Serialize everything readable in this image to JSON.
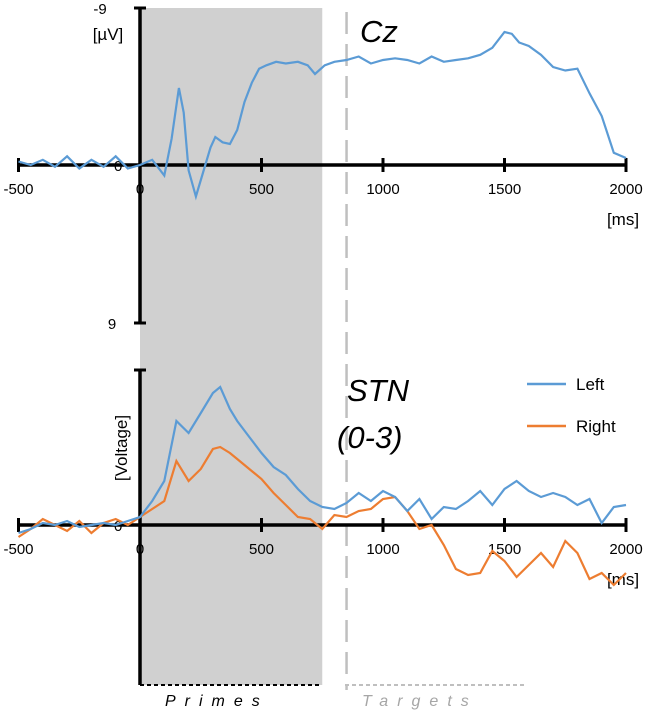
{
  "chart_data": [
    {
      "type": "line",
      "title": "Cz",
      "ylabel": "[µV]",
      "xlabel": "[ms]",
      "y_tick_top": "-9",
      "y_tick_mid": "0",
      "y_tick_bottom": "9",
      "x_ticks": [
        "-500",
        "0",
        "500",
        "1000",
        "1500",
        "2000"
      ],
      "xlim": [
        -500,
        2000
      ],
      "ylim": [
        -9,
        9
      ],
      "y_inverted": true,
      "series": [
        {
          "color": "#5b9bd5",
          "x": [
            -500,
            -450,
            -400,
            -350,
            -300,
            -250,
            -200,
            -150,
            -100,
            -50,
            0,
            50,
            100,
            130,
            160,
            180,
            200,
            230,
            260,
            290,
            310,
            340,
            370,
            400,
            430,
            460,
            490,
            520,
            560,
            600,
            650,
            690,
            720,
            760,
            800,
            850,
            900,
            950,
            1000,
            1050,
            1100,
            1150,
            1200,
            1250,
            1300,
            1350,
            1400,
            1450,
            1500,
            1530,
            1560,
            1600,
            1650,
            1700,
            1750,
            1800,
            1850,
            1900,
            1950,
            2000
          ],
          "y": [
            -0.2,
            0,
            -0.3,
            0.1,
            -0.5,
            0.2,
            -0.3,
            0.1,
            -0.5,
            0.2,
            0,
            -0.3,
            0.6,
            -1.5,
            -4.4,
            -3.0,
            0.3,
            1.8,
            0.4,
            -1.0,
            -1.6,
            -1.3,
            -1.2,
            -2.0,
            -3.6,
            -4.7,
            -5.5,
            -5.7,
            -5.9,
            -5.8,
            -5.9,
            -5.7,
            -5.2,
            -5.7,
            -5.9,
            -6.0,
            -6.2,
            -5.8,
            -6.0,
            -6.1,
            -6.0,
            -5.8,
            -6.2,
            -5.9,
            -6.0,
            -6.1,
            -6.3,
            -6.7,
            -7.6,
            -7.5,
            -7.0,
            -6.8,
            -6.3,
            -5.6,
            -5.4,
            -5.5,
            -4.1,
            -2.8,
            -0.7,
            -0.4
          ]
        }
      ]
    },
    {
      "type": "line",
      "title": "STN (0-3)",
      "title_line1": "STN",
      "title_line2": "(0-3)",
      "ylabel": "[Voltage]",
      "xlabel": "[ms]",
      "y_tick_mid": "0",
      "x_ticks": [
        "-500",
        "0",
        "500",
        "1000",
        "1500",
        "2000"
      ],
      "xlim": [
        -500,
        2000
      ],
      "ylim": [
        -1,
        1
      ],
      "series": [
        {
          "name": "Left",
          "color": "#5b9bd5",
          "x": [
            -500,
            -450,
            -400,
            -350,
            -300,
            -250,
            -200,
            -150,
            -100,
            -50,
            0,
            50,
            100,
            150,
            200,
            250,
            300,
            330,
            370,
            400,
            450,
            500,
            550,
            600,
            650,
            700,
            750,
            800,
            850,
            900,
            950,
            1000,
            1050,
            1100,
            1150,
            1200,
            1250,
            1300,
            1350,
            1400,
            1450,
            1500,
            1550,
            1600,
            1650,
            1700,
            1750,
            1800,
            1850,
            1900,
            1950,
            2000
          ],
          "y": [
            -0.04,
            -0.02,
            0.01,
            0,
            0.02,
            -0.01,
            0,
            0.01,
            0,
            0.02,
            0.04,
            0.12,
            0.22,
            0.52,
            0.46,
            0.56,
            0.66,
            0.69,
            0.58,
            0.52,
            0.44,
            0.36,
            0.29,
            0.25,
            0.18,
            0.12,
            0.09,
            0.08,
            0.11,
            0.16,
            0.12,
            0.17,
            0.14,
            0.07,
            0.13,
            0.03,
            0.09,
            0.08,
            0.12,
            0.17,
            0.1,
            0.18,
            0.22,
            0.17,
            0.14,
            0.16,
            0.14,
            0.1,
            0.13,
            0.01,
            0.09,
            0.1
          ]
        },
        {
          "name": "Right",
          "color": "#ed7d31",
          "x": [
            -500,
            -450,
            -400,
            -350,
            -300,
            -250,
            -200,
            -150,
            -100,
            -50,
            0,
            50,
            100,
            150,
            200,
            250,
            300,
            330,
            370,
            400,
            450,
            500,
            550,
            600,
            650,
            700,
            750,
            800,
            850,
            900,
            950,
            1000,
            1050,
            1100,
            1150,
            1200,
            1250,
            1300,
            1350,
            1400,
            1450,
            1500,
            1550,
            1600,
            1650,
            1700,
            1750,
            1800,
            1850,
            1900,
            1950,
            2000
          ],
          "y": [
            -0.06,
            -0.02,
            0.03,
            0,
            -0.03,
            0.02,
            -0.04,
            0.01,
            0.03,
            0,
            0.04,
            0.08,
            0.12,
            0.32,
            0.22,
            0.28,
            0.38,
            0.39,
            0.36,
            0.33,
            0.28,
            0.23,
            0.16,
            0.1,
            0.04,
            0.03,
            -0.02,
            0.05,
            0.04,
            0.07,
            0.08,
            0.13,
            0.14,
            0.07,
            -0.02,
            0,
            -0.1,
            -0.22,
            -0.25,
            -0.24,
            -0.13,
            -0.18,
            -0.26,
            -0.2,
            -0.14,
            -0.21,
            -0.08,
            -0.14,
            -0.27,
            -0.24,
            -0.3,
            -0.24
          ]
        }
      ]
    }
  ],
  "legend": {
    "left": "Left",
    "right": "Right"
  },
  "phases": {
    "primes": "Primes",
    "targets": "Targets"
  },
  "colors": {
    "left": "#5b9bd5",
    "right": "#ed7d31",
    "shade": "#d0d0d0",
    "target_line": "#bfbfbf"
  },
  "shaded_interval_ms": [
    0,
    750
  ],
  "target_onset_ms": 850
}
